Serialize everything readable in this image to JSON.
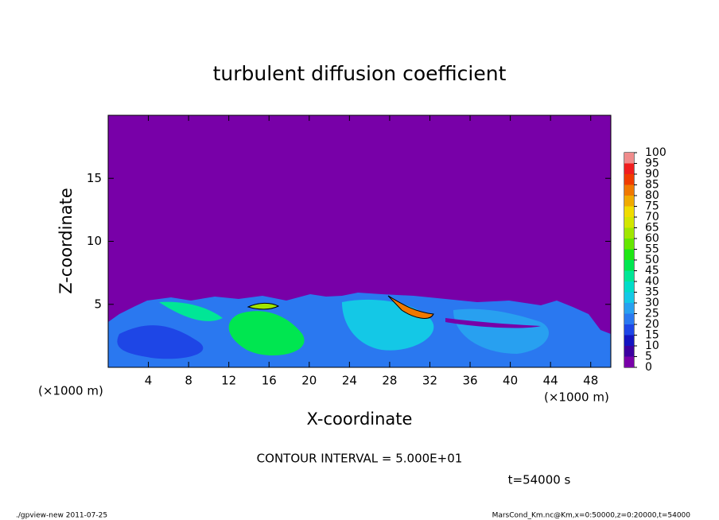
{
  "chart_data": {
    "type": "contour",
    "title": "turbulent diffusion coefficient",
    "xlabel": "X-coordinate",
    "ylabel": "Z-coordinate",
    "x_unit": "(×1000 m)",
    "xlim": [
      0,
      50
    ],
    "xticks": [
      4,
      8,
      12,
      16,
      20,
      24,
      28,
      32,
      36,
      40,
      44,
      48
    ],
    "ylim": [
      0,
      20
    ],
    "yticks": [
      5,
      10,
      15
    ],
    "colorbar": {
      "levels": [
        0,
        5,
        10,
        15,
        20,
        25,
        30,
        35,
        40,
        45,
        50,
        55,
        60,
        65,
        70,
        75,
        80,
        85,
        90,
        95,
        100
      ],
      "colors": [
        "#7800a8",
        "#3c00a0",
        "#1414c0",
        "#1e46e6",
        "#2a78f0",
        "#28a0f0",
        "#14c8e6",
        "#00dcc8",
        "#00e696",
        "#00e650",
        "#1ee614",
        "#64e600",
        "#a0e600",
        "#d2e600",
        "#f0dc00",
        "#f0aa00",
        "#f07800",
        "#f03c00",
        "#f01e1e",
        "#f08c8c"
      ]
    },
    "contour_note": "CONTOUR INTERVAL = 5.000E+01",
    "time_note": "t=54000 s",
    "footer_left": "./gpview-new  2011-07-25",
    "footer_right": "MarsCond_Km.nc@Km,x=0:50000,z=0:20000,t=54000"
  }
}
